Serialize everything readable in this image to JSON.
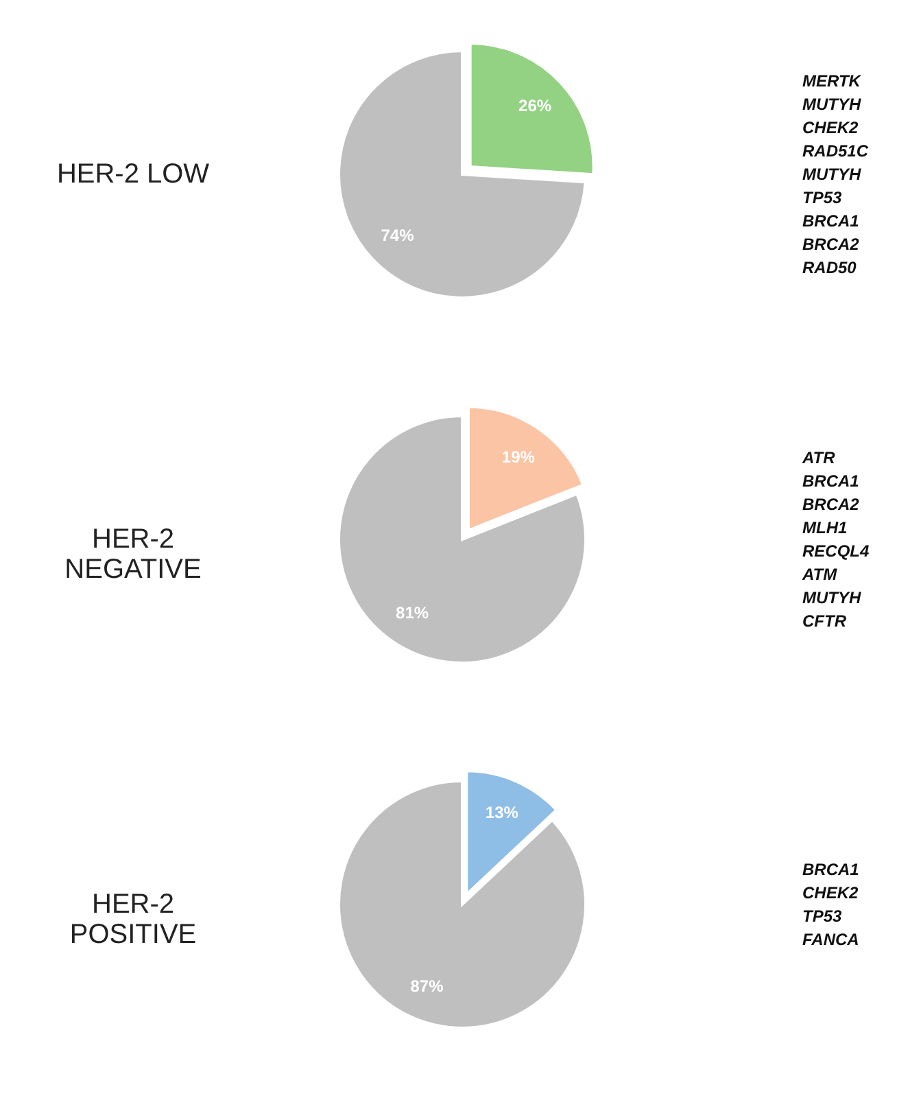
{
  "chart_data": [
    {
      "type": "pie",
      "title": "HER-2 LOW",
      "categories": [
        null,
        null
      ],
      "values": [
        26,
        74
      ],
      "colors": [
        "#92d282",
        "#bfbfbf"
      ],
      "value_labels": [
        "26%",
        "74%"
      ],
      "annotations": [
        "MERTK",
        "MUTYH",
        "CHEK2",
        "RAD51C",
        "MUTYH",
        "TP53",
        "BRCA1",
        "BRCA2",
        "RAD50"
      ]
    },
    {
      "type": "pie",
      "title": "HER-2\nNEGATIVE",
      "categories": [
        null,
        null
      ],
      "values": [
        19,
        81
      ],
      "colors": [
        "#fbc4a4",
        "#bfbfbf"
      ],
      "value_labels": [
        "19%",
        "81%"
      ],
      "annotations": [
        "ATR",
        "BRCA1",
        "BRCA2",
        "MLH1",
        "RECQL4",
        "ATM",
        "MUTYH",
        "CFTR"
      ]
    },
    {
      "type": "pie",
      "title": "HER-2\nPOSITIVE",
      "categories": [
        null,
        null
      ],
      "values": [
        13,
        87
      ],
      "colors": [
        "#8ebde6",
        "#bfbfbf"
      ],
      "value_labels": [
        "13%",
        "87%"
      ],
      "annotations": [
        "BRCA1",
        "CHEK2",
        "TP53",
        "FANCA"
      ]
    }
  ]
}
